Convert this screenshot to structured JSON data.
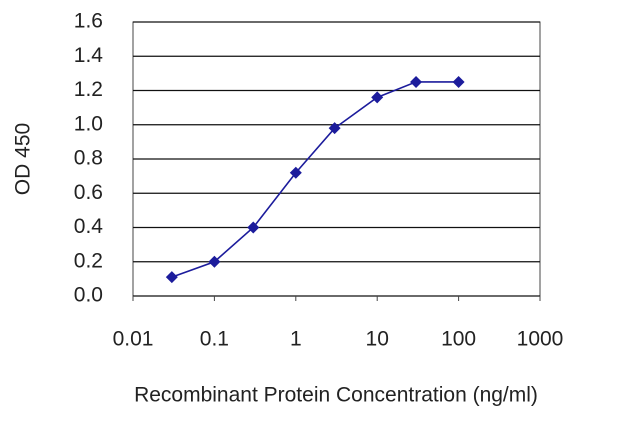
{
  "chart_data": {
    "type": "line",
    "x_label": "Recombinant Protein Concentration (ng/ml)",
    "y_label": "OD 450",
    "x": [
      0.03,
      0.1,
      0.3,
      1,
      3,
      10,
      30,
      100
    ],
    "series": [
      {
        "color": "#1c1c9c",
        "values": [
          0.11,
          0.2,
          0.4,
          0.72,
          0.98,
          1.16,
          1.25,
          1.25
        ]
      }
    ],
    "xscale": "log",
    "xlim": [
      0.01,
      1000
    ],
    "xticks": [
      0.01,
      0.1,
      1,
      10,
      100,
      1000
    ],
    "ylim": [
      0,
      1.6
    ],
    "yticks": [
      {
        "value": 0,
        "label": "0.0"
      },
      0.2,
      0.4,
      0.6,
      0.8,
      {
        "value": 1,
        "label": "1.0"
      },
      1.2,
      1.4,
      1.6
    ],
    "grid": true
  }
}
